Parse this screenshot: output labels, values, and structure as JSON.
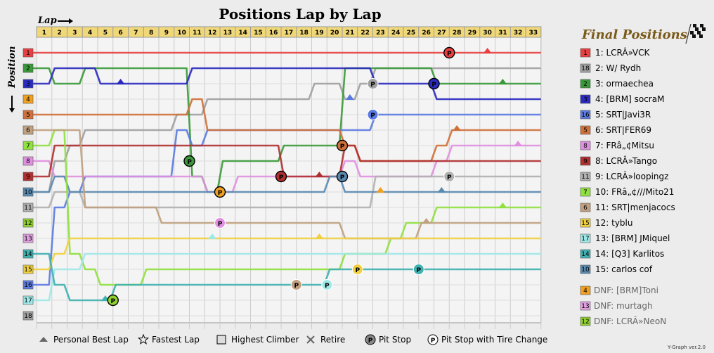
{
  "title": "Positions Lap by Lap",
  "x_label": "Lap",
  "y_label": "Position",
  "final_title": "Final Positions",
  "version": "Y-Graph ver.2.0",
  "legend": [
    {
      "icon": "personal-best-lap-icon",
      "label": "Personal Best Lap"
    },
    {
      "icon": "fastest-lap-icon",
      "label": "Fastest Lap"
    },
    {
      "icon": "highest-climber-icon",
      "label": "Highest Climber"
    },
    {
      "icon": "retire-icon",
      "label": "Retire"
    },
    {
      "icon": "pit-stop-icon",
      "label": "Pit Stop"
    },
    {
      "icon": "pit-stop-tire-change-icon",
      "label": "Pit Stop with Tire Change"
    }
  ],
  "chart_data": {
    "type": "line",
    "laps": [
      1,
      2,
      3,
      4,
      5,
      6,
      7,
      8,
      9,
      10,
      11,
      12,
      13,
      14,
      15,
      16,
      17,
      18,
      19,
      20,
      21,
      22,
      23,
      24,
      25,
      26,
      27,
      28,
      29,
      30,
      31,
      32,
      33
    ],
    "positions": [
      1,
      2,
      3,
      4,
      5,
      6,
      7,
      8,
      9,
      10,
      11,
      12,
      13,
      14,
      15,
      16,
      17,
      18
    ],
    "y_inverted": true,
    "grid": true,
    "series": [
      {
        "start": 1,
        "color": "#e84040",
        "final": "1: LCRÂ»VCK",
        "values": [
          1,
          1,
          1,
          1,
          1,
          1,
          1,
          1,
          1,
          1,
          1,
          1,
          1,
          1,
          1,
          1,
          1,
          1,
          1,
          1,
          1,
          1,
          1,
          1,
          1,
          1,
          1,
          1,
          1,
          1,
          1,
          1,
          1
        ]
      },
      {
        "start": 18,
        "color": "#a0a0a0",
        "final": "2: W/ Rydh",
        "values": [
          10,
          8,
          7,
          6,
          6,
          6,
          6,
          6,
          6,
          5,
          5,
          4,
          4,
          4,
          4,
          4,
          4,
          4,
          3,
          3,
          4,
          3,
          2,
          2,
          2,
          2,
          2,
          2,
          2,
          2,
          2,
          2,
          2
        ]
      },
      {
        "start": 2,
        "color": "#3a9a3a",
        "final": "3: ormaechea",
        "values": [
          2,
          3,
          3,
          2,
          2,
          2,
          2,
          2,
          2,
          2,
          9,
          10,
          8,
          8,
          8,
          8,
          7,
          7,
          7,
          7,
          2,
          2,
          2,
          2,
          2,
          2,
          3,
          3,
          3,
          3,
          3,
          3,
          3
        ]
      },
      {
        "start": 3,
        "color": "#2a2ac0",
        "final": "4: [BRM] socraM",
        "values": [
          3,
          2,
          2,
          2,
          3,
          3,
          3,
          3,
          3,
          3,
          2,
          2,
          2,
          2,
          2,
          2,
          2,
          2,
          2,
          2,
          2,
          2,
          3,
          3,
          3,
          3,
          4,
          4,
          4,
          4,
          4,
          4,
          4
        ]
      },
      {
        "start": 16,
        "color": "#5a7ae0",
        "final": "5: SRT|Javi3R",
        "values": [
          16,
          11,
          10,
          9,
          9,
          9,
          9,
          9,
          9,
          6,
          7,
          6,
          6,
          6,
          6,
          6,
          6,
          6,
          6,
          6,
          6,
          6,
          5,
          5,
          5,
          5,
          5,
          5,
          5,
          5,
          5,
          5,
          5
        ]
      },
      {
        "start": 5,
        "color": "#d0703a",
        "final": "6: SRT|FER69",
        "values": [
          5,
          5,
          5,
          5,
          5,
          5,
          5,
          5,
          5,
          5,
          4,
          6,
          6,
          6,
          6,
          6,
          6,
          6,
          6,
          6,
          7,
          8,
          8,
          8,
          8,
          8,
          7,
          6,
          6,
          6,
          6,
          6,
          6
        ]
      },
      {
        "start": 8,
        "color": "#e090e0",
        "final": "7: FRâ„¢Mitsu",
        "values": [
          8,
          9,
          9,
          9,
          9,
          9,
          9,
          9,
          9,
          9,
          9,
          10,
          10,
          9,
          9,
          9,
          9,
          9,
          9,
          9,
          8,
          9,
          9,
          9,
          9,
          9,
          8,
          7,
          7,
          7,
          7,
          7,
          7
        ]
      },
      {
        "start": 9,
        "color": "#b03030",
        "final": "8: LCRÂ»Tango",
        "values": [
          9,
          7,
          7,
          7,
          7,
          7,
          7,
          7,
          7,
          7,
          7,
          7,
          7,
          7,
          7,
          7,
          9,
          9,
          9,
          9,
          7,
          8,
          8,
          8,
          8,
          8,
          8,
          8,
          8,
          8,
          8,
          8,
          8
        ]
      },
      {
        "start": 11,
        "color": "#b0b0b0",
        "final": "9: LCRÂ»loopingz",
        "values": [
          11,
          10,
          10,
          11,
          11,
          11,
          11,
          11,
          11,
          11,
          11,
          11,
          11,
          11,
          11,
          11,
          11,
          11,
          11,
          11,
          11,
          11,
          9,
          9,
          9,
          9,
          9,
          9,
          9,
          9,
          9,
          9,
          9
        ]
      },
      {
        "start": 10,
        "color": "#5a8ab0",
        "final": "10: FRâ„¢///Mito21",
        "values": [
          10,
          9,
          10,
          10,
          10,
          10,
          10,
          10,
          10,
          10,
          10,
          10,
          10,
          10,
          10,
          10,
          10,
          10,
          10,
          9,
          10,
          10,
          10,
          10,
          10,
          10,
          10,
          10,
          10,
          10,
          10,
          10,
          10
        ]
      },
      {
        "start": 7,
        "color": "#90e040",
        "final": "11: SRT|menjacocs",
        "values": [
          7,
          6,
          14,
          15,
          16,
          16,
          16,
          15,
          15,
          15,
          15,
          15,
          15,
          15,
          15,
          15,
          15,
          15,
          15,
          15,
          14,
          14,
          14,
          13,
          12,
          12,
          11,
          11,
          11,
          11,
          11,
          11,
          11
        ]
      },
      {
        "start": 6,
        "color": "#c0a080",
        "final": "12: tyblu",
        "values": [
          6,
          6,
          6,
          11,
          11,
          11,
          11,
          11,
          12,
          12,
          12,
          12,
          12,
          12,
          12,
          12,
          12,
          12,
          12,
          12,
          13,
          13,
          13,
          13,
          13,
          12,
          12,
          12,
          12,
          12,
          12,
          12,
          12
        ]
      },
      {
        "start": 15,
        "color": "#f0d040",
        "final": "13: [BRM] JMiquel",
        "values": [
          15,
          14,
          13,
          13,
          13,
          13,
          13,
          13,
          13,
          13,
          13,
          13,
          13,
          13,
          13,
          13,
          13,
          13,
          13,
          13,
          13,
          13,
          13,
          13,
          13,
          13,
          13,
          13,
          13,
          13,
          13,
          13,
          13
        ]
      },
      {
        "start": 17,
        "color": "#a0e8e8",
        "final": "14: [Q3] Karlitos",
        "values": [
          17,
          15,
          15,
          14,
          14,
          14,
          14,
          14,
          14,
          14,
          14,
          14,
          14,
          14,
          14,
          14,
          14,
          14,
          14,
          14,
          14,
          14,
          14,
          14,
          14,
          14,
          14,
          14,
          14,
          14,
          14,
          14,
          14
        ]
      },
      {
        "start": 14,
        "color": "#40b0b0",
        "final": "15: carlos cof",
        "values": [
          14,
          16,
          17,
          17,
          17,
          16,
          16,
          16,
          16,
          16,
          16,
          16,
          16,
          16,
          16,
          16,
          16,
          16,
          16,
          15,
          15,
          15,
          15,
          15,
          15,
          15,
          15,
          15,
          15,
          15,
          15,
          15,
          15
        ]
      }
    ],
    "dnf": [
      {
        "start": 4,
        "color": "#f0a020",
        "final": "DNF: [BRM]Toni"
      },
      {
        "start": 13,
        "color": "#e0a0e0",
        "final": "DNF: murtagh"
      },
      {
        "start": 12,
        "color": "#90d030",
        "final": "DNF: LCRÂ»NeoN"
      }
    ],
    "final_boxes": [
      {
        "n": 1,
        "color": "#e84040"
      },
      {
        "n": 18,
        "color": "#a0a0a0"
      },
      {
        "n": 2,
        "color": "#3a9a3a"
      },
      {
        "n": 3,
        "color": "#2a2ac0"
      },
      {
        "n": 16,
        "color": "#5a7ae0"
      },
      {
        "n": 5,
        "color": "#d0703a"
      },
      {
        "n": 8,
        "color": "#e090e0"
      },
      {
        "n": 9,
        "color": "#b03030"
      },
      {
        "n": 11,
        "color": "#b0b0b0"
      },
      {
        "n": 7,
        "color": "#90e040"
      },
      {
        "n": 6,
        "color": "#c0a080"
      },
      {
        "n": 15,
        "color": "#f0d040"
      },
      {
        "n": 17,
        "color": "#a0e8e8"
      },
      {
        "n": 14,
        "color": "#40b0b0"
      },
      {
        "n": 10,
        "color": "#5a8ab0"
      }
    ],
    "start_boxes": [
      {
        "n": 1,
        "color": "#e84040"
      },
      {
        "n": 2,
        "color": "#3a9a3a"
      },
      {
        "n": 3,
        "color": "#2a2ac0"
      },
      {
        "n": 4,
        "color": "#f0a020"
      },
      {
        "n": 5,
        "color": "#d0703a"
      },
      {
        "n": 6,
        "color": "#c0a080"
      },
      {
        "n": 7,
        "color": "#90e040"
      },
      {
        "n": 8,
        "color": "#e090e0"
      },
      {
        "n": 9,
        "color": "#b03030"
      },
      {
        "n": 10,
        "color": "#5a8ab0"
      },
      {
        "n": 11,
        "color": "#b0b0b0"
      },
      {
        "n": 12,
        "color": "#90d030"
      },
      {
        "n": 13,
        "color": "#e0a0e0"
      },
      {
        "n": 14,
        "color": "#40b0b0"
      },
      {
        "n": 15,
        "color": "#f0d040"
      },
      {
        "n": 16,
        "color": "#5a7ae0"
      },
      {
        "n": 17,
        "color": "#a0e8e8"
      },
      {
        "n": 18,
        "color": "#a0a0a0"
      }
    ],
    "pit_stops": [
      {
        "lap": 28,
        "pos": 1,
        "color": "#e84040",
        "tire": true
      },
      {
        "lap": 23,
        "pos": 3,
        "color": "#a0a0a0",
        "tire": false
      },
      {
        "lap": 27,
        "pos": 3,
        "color": "#2a2ac0",
        "tire": true
      },
      {
        "lap": 23,
        "pos": 5,
        "color": "#5a7ae0",
        "tire": false
      },
      {
        "lap": 21,
        "pos": 7,
        "color": "#d0703a",
        "tire": true
      },
      {
        "lap": 11,
        "pos": 8,
        "color": "#3a9a3a",
        "tire": true
      },
      {
        "lap": 17,
        "pos": 9,
        "color": "#b03030",
        "tire": true
      },
      {
        "lap": 21,
        "pos": 9,
        "color": "#5a8ab0",
        "tire": true
      },
      {
        "lap": 28,
        "pos": 9,
        "color": "#b0b0b0",
        "tire": false
      },
      {
        "lap": 13,
        "pos": 10,
        "color": "#f0a020",
        "tire": true
      },
      {
        "lap": 13,
        "pos": 12,
        "color": "#e090e0",
        "tire": false
      },
      {
        "lap": 22,
        "pos": 15,
        "color": "#f0d040",
        "tire": false
      },
      {
        "lap": 26,
        "pos": 15,
        "color": "#40b0b0",
        "tire": false
      },
      {
        "lap": 18,
        "pos": 16,
        "color": "#c0a080",
        "tire": false
      },
      {
        "lap": 20,
        "pos": 16,
        "color": "#a0e8e8",
        "tire": false
      },
      {
        "lap": 6,
        "pos": 17,
        "color": "#90d030",
        "tire": true
      }
    ],
    "best_laps": [
      {
        "lap": 30,
        "pos": 1,
        "color": "#e84040"
      },
      {
        "lap": 31,
        "pos": 3,
        "color": "#3a9a3a"
      },
      {
        "lap": 6,
        "pos": 3,
        "color": "#2a2ac0"
      },
      {
        "lap": 21,
        "pos": 4,
        "color": "#5a7ae0"
      },
      {
        "lap": 28,
        "pos": 6,
        "color": "#d0703a"
      },
      {
        "lap": 32,
        "pos": 7,
        "color": "#e090e0"
      },
      {
        "lap": 19,
        "pos": 9,
        "color": "#b03030"
      },
      {
        "lap": 23,
        "pos": 10,
        "color": "#f0a020"
      },
      {
        "lap": 27,
        "pos": 10,
        "color": "#5a8ab0"
      },
      {
        "lap": 31,
        "pos": 11,
        "color": "#90e040"
      },
      {
        "lap": 26,
        "pos": 12,
        "color": "#c0a080"
      },
      {
        "lap": 19,
        "pos": 13,
        "color": "#f0d040"
      },
      {
        "lap": 12,
        "pos": 13,
        "color": "#a0e8e8"
      },
      {
        "lap": 5,
        "pos": 17,
        "color": "#40b0b0"
      }
    ]
  }
}
